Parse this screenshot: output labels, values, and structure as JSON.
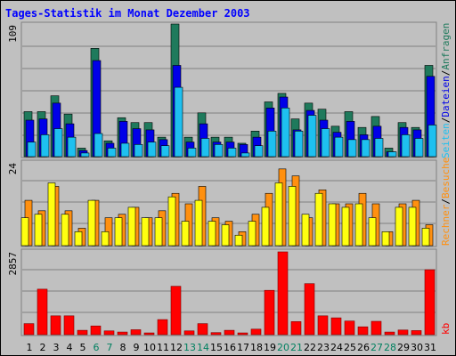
{
  "colors": {
    "background": "#c0c0c0",
    "frame": "#808080",
    "title": "#0000ff",
    "gridline": "#808080",
    "weekday_label": "#000000",
    "weekend_label": "#008060",
    "anfragen": "#1f7a5c",
    "dateien": "#0000e8",
    "seiten": "#1ec0f0",
    "besuche": "#ff9010",
    "rechner": "#ffff10",
    "kb": "#ff0000",
    "kb_border": "#800000"
  },
  "title": "Tages-Statistik im Monat Dezember 2003",
  "legend": {
    "anfragen": "Anfragen",
    "dateien": "Dateien",
    "seiten": "Seiten",
    "besuche": "Besuche",
    "rechner": "Rechner",
    "kb": "kb"
  },
  "axis": {
    "max_hits": "109",
    "max_visits": "24",
    "max_kb": "2857"
  },
  "day_labels": [
    "1",
    "2",
    "3",
    "4",
    "5",
    "6",
    "7",
    "8",
    "9",
    "10",
    "11",
    "12",
    "13",
    "14",
    "15",
    "16",
    "17",
    "18",
    "19",
    "20",
    "21",
    "22",
    "23",
    "24",
    "25",
    "26",
    "27",
    "28",
    "29",
    "30",
    "31"
  ],
  "weekend_days": [
    6,
    7,
    13,
    14,
    20,
    21,
    27,
    28
  ],
  "chart_data": [
    {
      "type": "bar",
      "title": "Tages-Statistik im Monat Dezember 2003",
      "categories": [
        "1",
        "2",
        "3",
        "4",
        "5",
        "6",
        "7",
        "8",
        "9",
        "10",
        "11",
        "12",
        "13",
        "14",
        "15",
        "16",
        "17",
        "18",
        "19",
        "20",
        "21",
        "22",
        "23",
        "24",
        "25",
        "26",
        "27",
        "28",
        "29",
        "30",
        "31"
      ],
      "ymax": 109,
      "series": [
        {
          "name": "Anfragen",
          "values": [
            37,
            37,
            50,
            35,
            7,
            89,
            13,
            32,
            28,
            28,
            16,
            109,
            16,
            36,
            16,
            16,
            11,
            21,
            45,
            52,
            31,
            44,
            39,
            25,
            37,
            24,
            33,
            7,
            28,
            24,
            75
          ]
        },
        {
          "name": "Dateien",
          "values": [
            30,
            31,
            44,
            27,
            5,
            79,
            11,
            29,
            23,
            22,
            14,
            75,
            12,
            27,
            12,
            12,
            10,
            16,
            40,
            49,
            22,
            38,
            30,
            20,
            29,
            18,
            25,
            4,
            24,
            22,
            66
          ]
        },
        {
          "name": "Seiten",
          "values": [
            12,
            18,
            23,
            16,
            3,
            19,
            7,
            11,
            10,
            12,
            9,
            57,
            7,
            15,
            10,
            7,
            3,
            9,
            21,
            40,
            21,
            34,
            23,
            16,
            14,
            14,
            15,
            4,
            18,
            15,
            26
          ]
        }
      ]
    },
    {
      "type": "bar",
      "ymax": 24,
      "series": [
        {
          "name": "Besuche",
          "values": [
            13,
            10,
            17,
            10,
            5,
            13,
            8,
            9,
            11,
            8,
            10,
            15,
            12,
            17,
            8,
            7,
            4,
            9,
            15,
            22,
            20,
            8,
            16,
            12,
            12,
            15,
            12,
            4,
            12,
            13,
            6
          ]
        },
        {
          "name": "Rechner",
          "values": [
            8,
            9,
            18,
            9,
            4,
            13,
            4,
            8,
            11,
            8,
            8,
            14,
            7,
            13,
            7,
            6,
            3,
            7,
            11,
            18,
            17,
            9,
            15,
            12,
            11,
            12,
            8,
            4,
            11,
            11,
            5
          ]
        }
      ]
    },
    {
      "type": "bar",
      "ymax": 2857,
      "series": [
        {
          "name": "kb",
          "values": [
            380,
            1570,
            650,
            650,
            150,
            300,
            130,
            90,
            170,
            60,
            520,
            1670,
            130,
            380,
            70,
            150,
            60,
            190,
            1530,
            2857,
            450,
            1760,
            650,
            580,
            470,
            270,
            460,
            90,
            160,
            140,
            2240
          ]
        }
      ]
    }
  ]
}
